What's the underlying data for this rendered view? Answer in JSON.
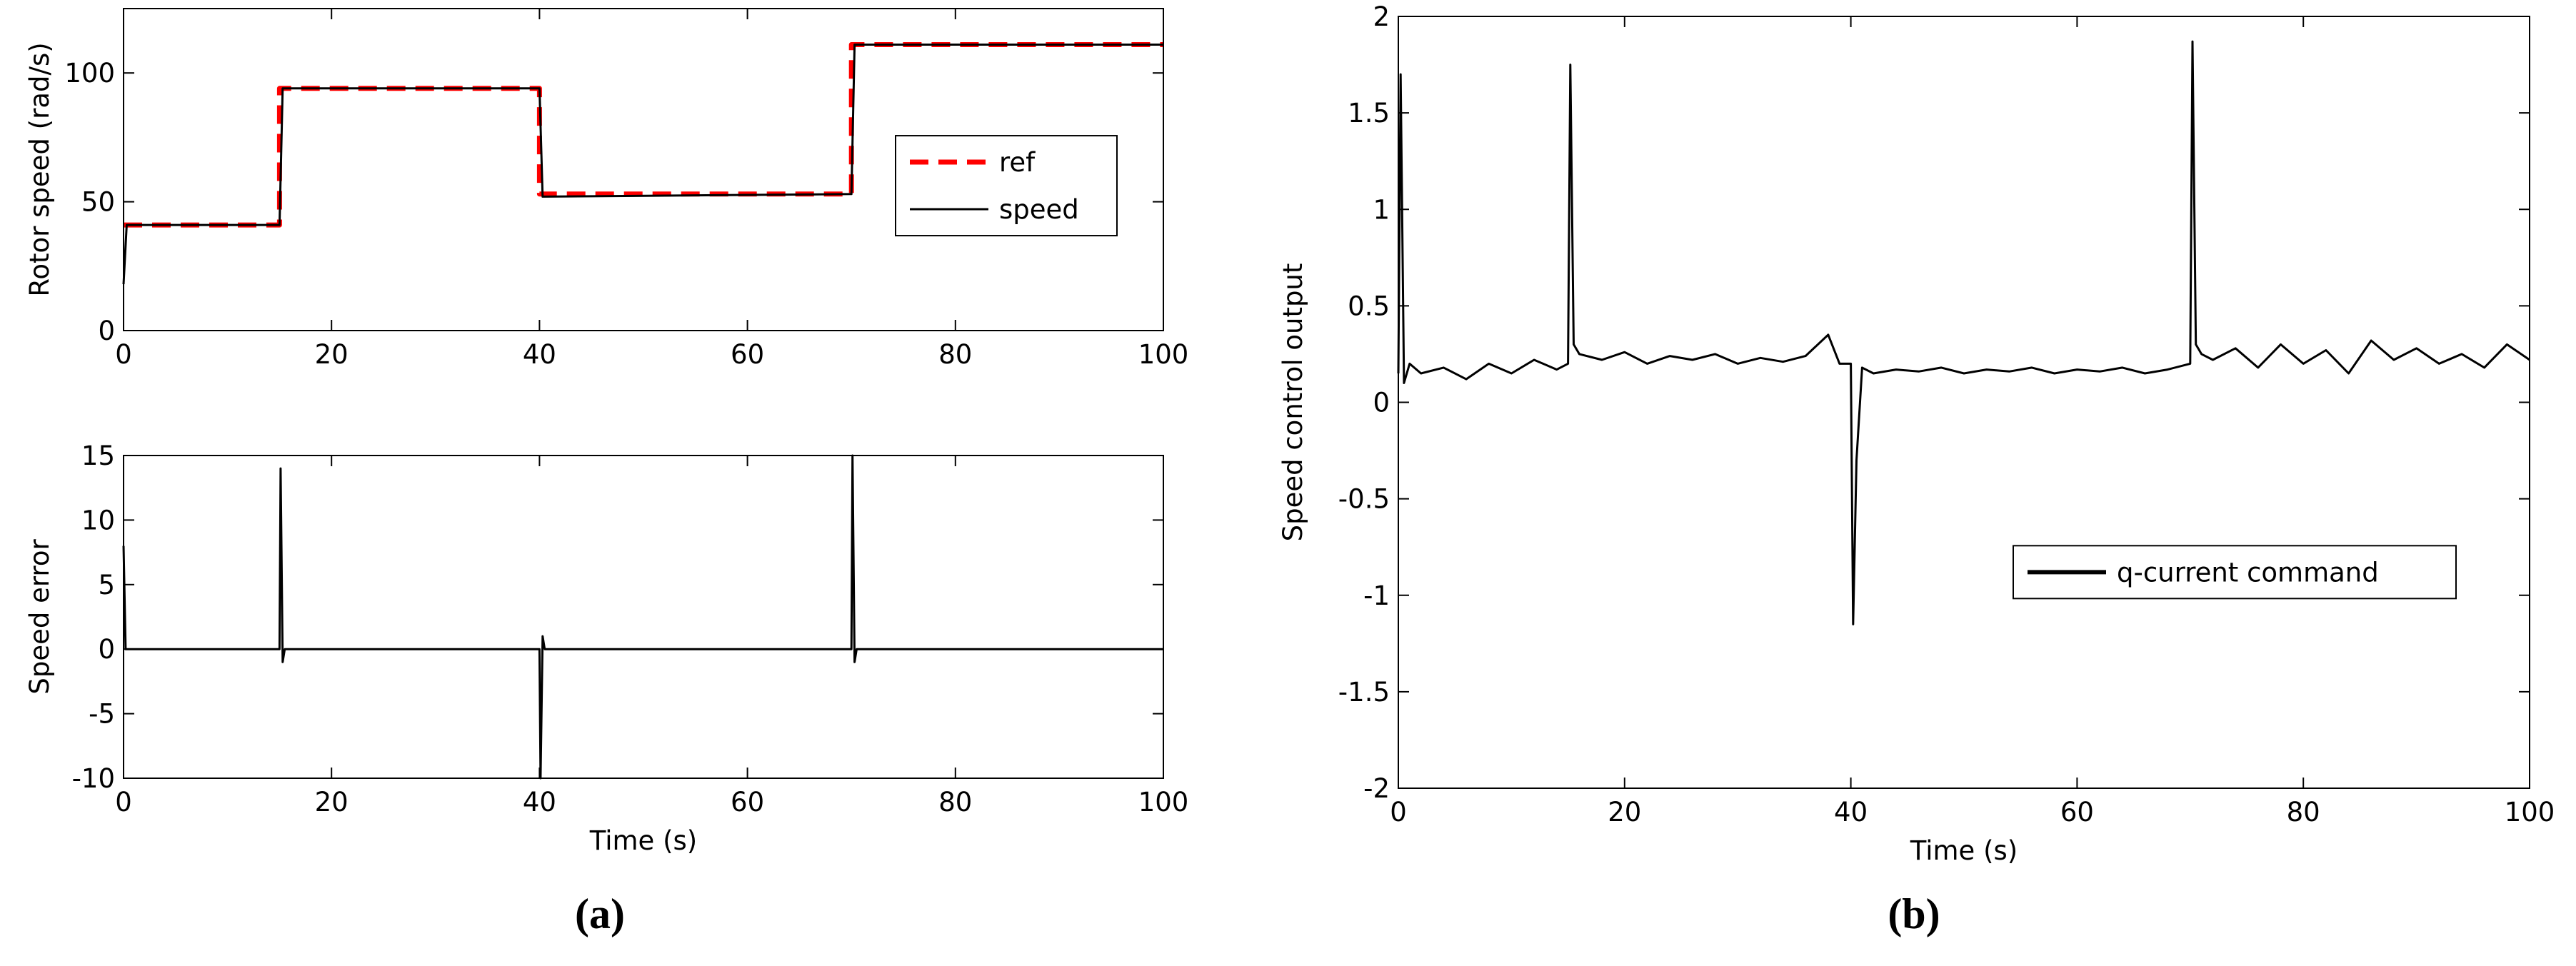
{
  "chart_data": [
    {
      "type": "line",
      "ylabel": "Rotor speed (rad/s)",
      "xlim": [
        0,
        100
      ],
      "xticks": [
        0,
        20,
        40,
        60,
        80,
        100
      ],
      "ylim": [
        0,
        125
      ],
      "yticks": [
        0,
        50,
        100
      ],
      "legend": "right",
      "series": [
        {
          "name": "ref",
          "color": "#ff0000",
          "dashed": true,
          "x": [
            0,
            15,
            15,
            40,
            40,
            70,
            70,
            100
          ],
          "values": [
            41,
            41,
            94,
            94,
            53,
            53,
            111,
            111
          ]
        },
        {
          "name": "speed",
          "color": "#000000",
          "dashed": false,
          "x": [
            0,
            0.3,
            15,
            15.3,
            40,
            40.3,
            70,
            70.3,
            100
          ],
          "values": [
            18,
            41,
            41,
            94,
            94,
            52,
            53,
            111,
            111
          ]
        }
      ]
    },
    {
      "type": "line",
      "ylabel": "Speed error",
      "xlabel": "Time (s)",
      "caption": "(a)",
      "xlim": [
        0,
        100
      ],
      "xticks": [
        0,
        20,
        40,
        60,
        80,
        100
      ],
      "ylim": [
        -10,
        15
      ],
      "yticks": [
        -10,
        -5,
        0,
        5,
        10,
        15
      ],
      "series": [
        {
          "color": "#000000",
          "dashed": false,
          "x": [
            0,
            0.2,
            0.5,
            15,
            15.1,
            15.3,
            15.5,
            40,
            40.1,
            40.3,
            40.5,
            70,
            70.1,
            70.3,
            70.5,
            100
          ],
          "values": [
            8,
            0,
            0,
            0,
            14,
            -1,
            0,
            0,
            -10,
            1,
            0,
            0,
            15,
            -1,
            0,
            0
          ]
        }
      ]
    },
    {
      "type": "line",
      "ylabel": "Speed control output",
      "xlabel": "Time (s)",
      "caption": "(b)",
      "xlim": [
        0,
        100
      ],
      "xticks": [
        0,
        20,
        40,
        60,
        80,
        100
      ],
      "ylim": [
        -2,
        2
      ],
      "yticks": [
        -2,
        -1.5,
        -1,
        -0.5,
        0,
        0.5,
        1,
        1.5,
        2
      ],
      "legend": "lower right",
      "series": [
        {
          "name": "q-current command",
          "color": "#000000",
          "dashed": false,
          "x": [
            0,
            0.2,
            0.5,
            1,
            2,
            4,
            6,
            8,
            10,
            12,
            14,
            15,
            15.2,
            15.5,
            16,
            18,
            20,
            22,
            24,
            26,
            28,
            30,
            32,
            34,
            36,
            38,
            39,
            40,
            40.2,
            40.5,
            41,
            42,
            44,
            46,
            48,
            50,
            52,
            54,
            56,
            58,
            60,
            62,
            64,
            66,
            68,
            70,
            70.2,
            70.5,
            71,
            72,
            74,
            76,
            78,
            80,
            82,
            84,
            86,
            88,
            90,
            92,
            94,
            96,
            98,
            100
          ],
          "values": [
            0.15,
            1.7,
            0.1,
            0.2,
            0.15,
            0.18,
            0.12,
            0.2,
            0.15,
            0.22,
            0.17,
            0.2,
            1.75,
            0.3,
            0.25,
            0.22,
            0.26,
            0.2,
            0.24,
            0.22,
            0.25,
            0.2,
            0.23,
            0.21,
            0.24,
            0.35,
            0.2,
            0.2,
            -1.15,
            -0.3,
            0.18,
            0.15,
            0.17,
            0.16,
            0.18,
            0.15,
            0.17,
            0.16,
            0.18,
            0.15,
            0.17,
            0.16,
            0.18,
            0.15,
            0.17,
            0.2,
            1.87,
            0.3,
            0.25,
            0.22,
            0.28,
            0.18,
            0.3,
            0.2,
            0.27,
            0.15,
            0.32,
            0.22,
            0.28,
            0.2,
            0.25,
            0.18,
            0.3,
            0.22
          ]
        }
      ]
    }
  ]
}
